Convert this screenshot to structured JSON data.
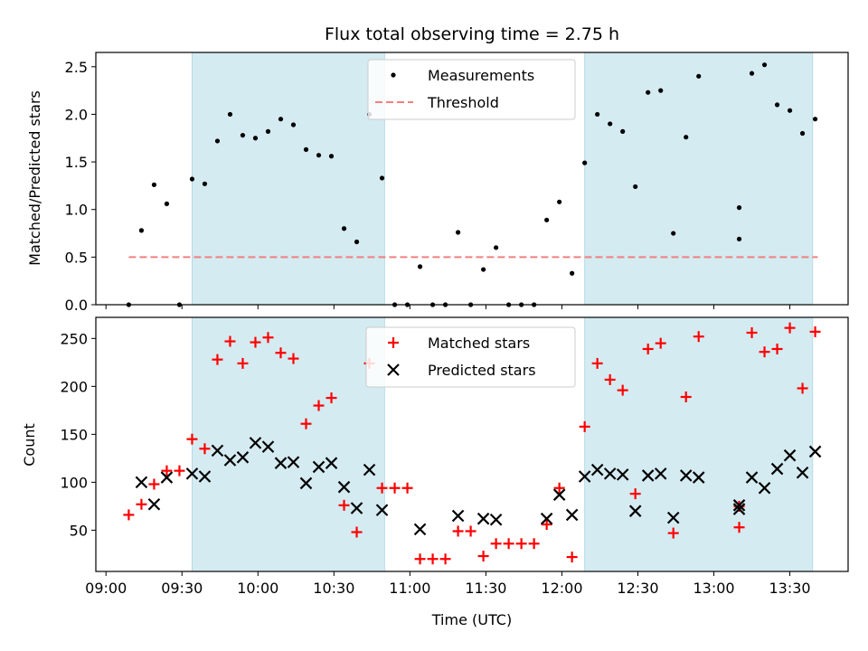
{
  "figure": {
    "title": "Flux total observing time = 2.75 h"
  },
  "chart_data": [
    {
      "type": "scatter",
      "name": "ratio-panel",
      "ylabel": "Matched/Predicted stars",
      "xlabel": "",
      "xlim": [
        "08:56",
        "13:53"
      ],
      "ylim": [
        0,
        2.65
      ],
      "yticks": [
        0.0,
        0.5,
        1.0,
        1.5,
        2.0,
        2.5
      ],
      "ytick_labels": [
        "0.0",
        "0.5",
        "1.0",
        "1.5",
        "2.0",
        "2.5"
      ],
      "legend_position": "top-center",
      "grid": false,
      "shaded_intervals": [
        {
          "start": "09:34",
          "end": "10:50",
          "color": "#d4ebf1"
        },
        {
          "start": "12:09",
          "end": "13:39",
          "color": "#d4ebf1"
        }
      ],
      "threshold": {
        "name": "Threshold",
        "value": 0.5,
        "x_start": "09:09",
        "x_end": "13:41",
        "color": "#f08080"
      },
      "series": [
        {
          "name": "Measurements",
          "marker": "dot",
          "color": "#000000",
          "points": [
            [
              "09:09",
              0.0
            ],
            [
              "09:14",
              0.78
            ],
            [
              "09:19",
              1.26
            ],
            [
              "09:24",
              1.06
            ],
            [
              "09:29",
              0.0
            ],
            [
              "09:34",
              1.32
            ],
            [
              "09:39",
              1.27
            ],
            [
              "09:44",
              1.72
            ],
            [
              "09:49",
              2.0
            ],
            [
              "09:54",
              1.78
            ],
            [
              "09:59",
              1.75
            ],
            [
              "10:04",
              1.82
            ],
            [
              "10:09",
              1.95
            ],
            [
              "10:14",
              1.89
            ],
            [
              "10:19",
              1.63
            ],
            [
              "10:24",
              1.57
            ],
            [
              "10:29",
              1.56
            ],
            [
              "10:34",
              0.8
            ],
            [
              "10:39",
              0.66
            ],
            [
              "10:44",
              2.0
            ],
            [
              "10:49",
              1.33
            ],
            [
              "10:54",
              0.0
            ],
            [
              "10:59",
              0.0
            ],
            [
              "11:04",
              0.4
            ],
            [
              "11:09",
              0.0
            ],
            [
              "11:14",
              0.0
            ],
            [
              "11:19",
              0.76
            ],
            [
              "11:24",
              0.0
            ],
            [
              "11:29",
              0.37
            ],
            [
              "11:34",
              0.6
            ],
            [
              "11:39",
              0.0
            ],
            [
              "11:44",
              0.0
            ],
            [
              "11:49",
              0.0
            ],
            [
              "11:54",
              0.89
            ],
            [
              "11:59",
              1.08
            ],
            [
              "12:04",
              0.33
            ],
            [
              "12:09",
              1.49
            ],
            [
              "12:14",
              2.0
            ],
            [
              "12:19",
              1.9
            ],
            [
              "12:24",
              1.82
            ],
            [
              "12:29",
              1.24
            ],
            [
              "12:34",
              2.23
            ],
            [
              "12:39",
              2.25
            ],
            [
              "12:44",
              0.75
            ],
            [
              "12:49",
              1.76
            ],
            [
              "12:54",
              2.4
            ],
            [
              "13:10",
              1.02
            ],
            [
              "13:10",
              0.69
            ],
            [
              "13:15",
              2.43
            ],
            [
              "13:20",
              2.52
            ],
            [
              "13:25",
              2.1
            ],
            [
              "13:30",
              2.04
            ],
            [
              "13:35",
              1.8
            ],
            [
              "13:40",
              1.95
            ]
          ]
        }
      ]
    },
    {
      "type": "scatter",
      "name": "count-panel",
      "ylabel": "Count",
      "xlabel": "Time (UTC)",
      "xlim": [
        "08:56",
        "13:53"
      ],
      "ylim": [
        7,
        272
      ],
      "yticks": [
        50,
        100,
        150,
        200,
        250
      ],
      "ytick_labels": [
        "50",
        "100",
        "150",
        "200",
        "250"
      ],
      "xticks": [
        "09:00",
        "09:30",
        "10:00",
        "10:30",
        "11:00",
        "11:30",
        "12:00",
        "12:30",
        "13:00",
        "13:30"
      ],
      "xtick_labels": [
        "09:00",
        "09:30",
        "10:00",
        "10:30",
        "11:00",
        "11:30",
        "12:00",
        "12:30",
        "13:00",
        "13:30"
      ],
      "legend_position": "top-center",
      "grid": false,
      "shaded_intervals": [
        {
          "start": "09:34",
          "end": "10:50",
          "color": "#d4ebf1"
        },
        {
          "start": "12:09",
          "end": "13:39",
          "color": "#d4ebf1"
        }
      ],
      "series": [
        {
          "name": "Matched stars",
          "marker": "plus",
          "color": "#ff0000",
          "points": [
            [
              "09:09",
              66
            ],
            [
              "09:14",
              77
            ],
            [
              "09:19",
              98
            ],
            [
              "09:24",
              112
            ],
            [
              "09:29",
              112
            ],
            [
              "09:34",
              145
            ],
            [
              "09:39",
              135
            ],
            [
              "09:44",
              228
            ],
            [
              "09:49",
              247
            ],
            [
              "09:54",
              224
            ],
            [
              "09:59",
              246
            ],
            [
              "10:04",
              251
            ],
            [
              "10:09",
              235
            ],
            [
              "10:14",
              229
            ],
            [
              "10:19",
              161
            ],
            [
              "10:24",
              180
            ],
            [
              "10:29",
              188
            ],
            [
              "10:34",
              76
            ],
            [
              "10:39",
              48
            ],
            [
              "10:44",
              224
            ],
            [
              "10:49",
              94
            ],
            [
              "10:54",
              94
            ],
            [
              "10:59",
              94
            ],
            [
              "11:04",
              20
            ],
            [
              "11:09",
              20
            ],
            [
              "11:14",
              20
            ],
            [
              "11:19",
              49
            ],
            [
              "11:24",
              49
            ],
            [
              "11:29",
              23
            ],
            [
              "11:34",
              36
            ],
            [
              "11:39",
              36
            ],
            [
              "11:44",
              36
            ],
            [
              "11:49",
              36
            ],
            [
              "11:54",
              56
            ],
            [
              "11:59",
              94
            ],
            [
              "12:04",
              22
            ],
            [
              "12:09",
              158
            ],
            [
              "12:14",
              224
            ],
            [
              "12:19",
              207
            ],
            [
              "12:24",
              196
            ],
            [
              "12:29",
              88
            ],
            [
              "12:34",
              239
            ],
            [
              "12:39",
              245
            ],
            [
              "12:44",
              47
            ],
            [
              "12:49",
              189
            ],
            [
              "12:54",
              252
            ],
            [
              "13:10",
              53
            ],
            [
              "13:10",
              75
            ],
            [
              "13:15",
              256
            ],
            [
              "13:20",
              236
            ],
            [
              "13:25",
              239
            ],
            [
              "13:30",
              261
            ],
            [
              "13:35",
              198
            ],
            [
              "13:40",
              257
            ]
          ]
        },
        {
          "name": "Predicted stars",
          "marker": "x",
          "color": "#000000",
          "points": [
            [
              "09:14",
              100
            ],
            [
              "09:19",
              77
            ],
            [
              "09:24",
              105
            ],
            [
              "09:34",
              109
            ],
            [
              "09:39",
              106
            ],
            [
              "09:44",
              133
            ],
            [
              "09:49",
              123
            ],
            [
              "09:54",
              126
            ],
            [
              "09:59",
              141
            ],
            [
              "10:04",
              137
            ],
            [
              "10:09",
              120
            ],
            [
              "10:14",
              121
            ],
            [
              "10:19",
              99
            ],
            [
              "10:24",
              116
            ],
            [
              "10:29",
              120
            ],
            [
              "10:34",
              95
            ],
            [
              "10:39",
              73
            ],
            [
              "10:44",
              113
            ],
            [
              "10:49",
              71
            ],
            [
              "11:04",
              51
            ],
            [
              "11:19",
              65
            ],
            [
              "11:29",
              62
            ],
            [
              "11:34",
              61
            ],
            [
              "11:54",
              62
            ],
            [
              "11:59",
              87
            ],
            [
              "12:04",
              66
            ],
            [
              "12:09",
              106
            ],
            [
              "12:14",
              113
            ],
            [
              "12:19",
              109
            ],
            [
              "12:24",
              108
            ],
            [
              "12:29",
              70
            ],
            [
              "12:34",
              107
            ],
            [
              "12:39",
              109
            ],
            [
              "12:44",
              63
            ],
            [
              "12:49",
              107
            ],
            [
              "12:54",
              105
            ],
            [
              "13:10",
              72
            ],
            [
              "13:10",
              76
            ],
            [
              "13:15",
              105
            ],
            [
              "13:20",
              94
            ],
            [
              "13:25",
              114
            ],
            [
              "13:30",
              128
            ],
            [
              "13:35",
              110
            ],
            [
              "13:40",
              132
            ]
          ]
        }
      ]
    }
  ]
}
